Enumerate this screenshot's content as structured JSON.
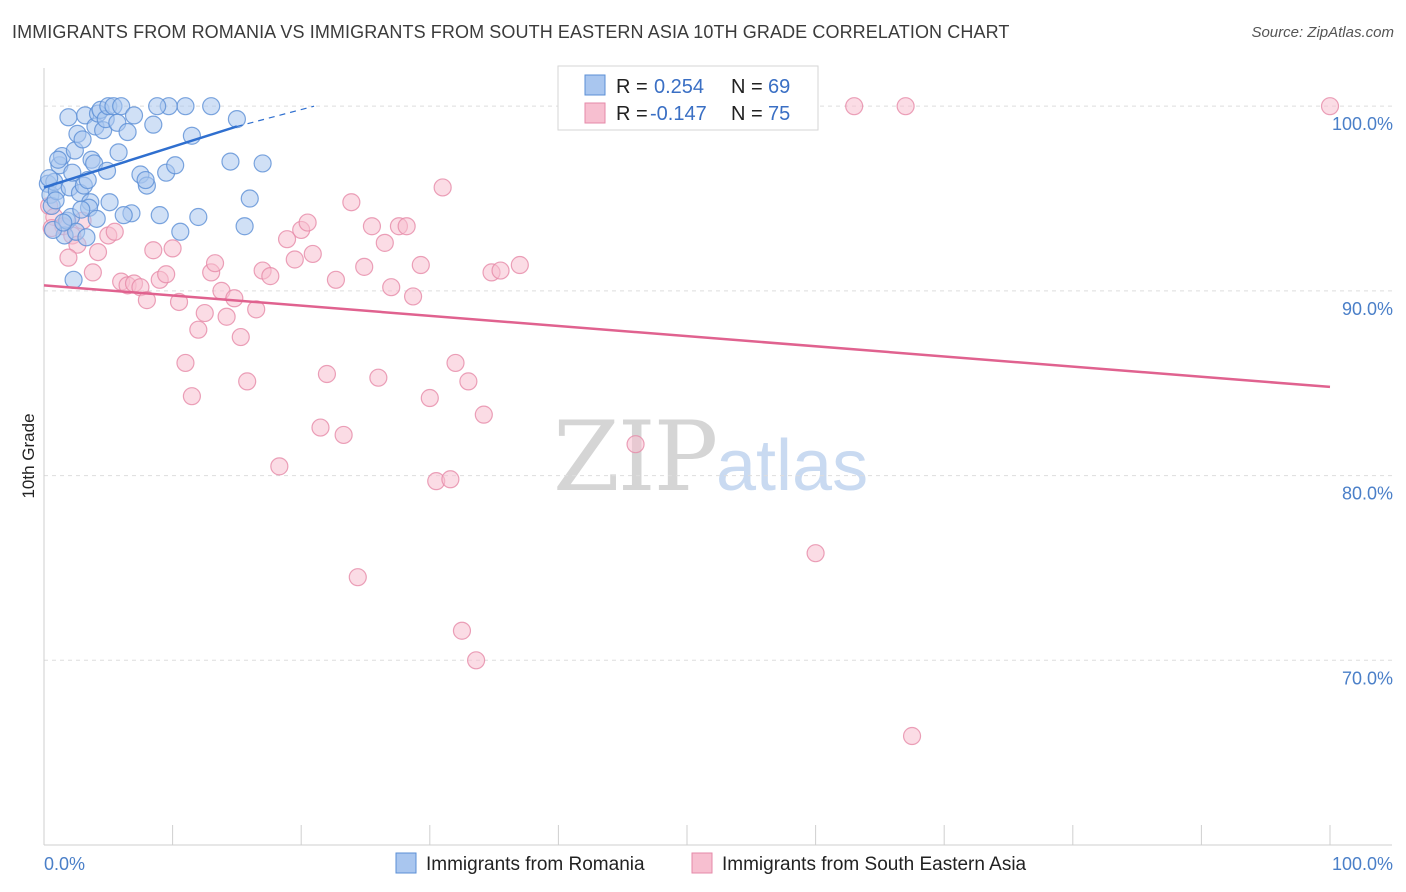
{
  "title": "IMMIGRANTS FROM ROMANIA VS IMMIGRANTS FROM SOUTH EASTERN ASIA 10TH GRADE CORRELATION CHART",
  "source": "Source: ZipAtlas.com",
  "watermark": {
    "zip": "ZIP",
    "atlas": "atlas"
  },
  "colors": {
    "romania_fill": "#a9c6ef",
    "romania_stroke": "#5b8fd6",
    "romania_line": "#2f6fcf",
    "sea_fill": "#f7bfd0",
    "sea_stroke": "#e68aa8",
    "sea_line": "#e0628f",
    "tick_text": "#4a7fc8",
    "grid": "#dddddd"
  },
  "legend": {
    "rows": [
      {
        "r_label": "R =",
        "r_value": "0.254",
        "n_label": "N =",
        "n_value": "69"
      },
      {
        "r_label": "R =",
        "r_value": "-0.147",
        "n_label": "N =",
        "n_value": "75"
      }
    ]
  },
  "chart_data": {
    "type": "scatter",
    "title": "IMMIGRANTS FROM ROMANIA VS IMMIGRANTS FROM SOUTH EASTERN ASIA 10TH GRADE CORRELATION CHART",
    "xlabel": "",
    "ylabel": "10th Grade",
    "xlim": [
      0,
      100
    ],
    "ylim": [
      60,
      102.5
    ],
    "x_tick_labels": [
      "0.0%",
      "100.0%"
    ],
    "y_ticks": [
      70,
      80,
      90,
      100
    ],
    "y_tick_labels": [
      "70.0%",
      "80.0%",
      "90.0%",
      "100.0%"
    ],
    "grid": true,
    "series": [
      {
        "name": "Immigrants from Romania",
        "R": 0.254,
        "N": 69,
        "trend": {
          "x0": 0,
          "y0": 95.6,
          "x1": 15,
          "y1": 98.9,
          "dash_to_x": 21,
          "dash_to_y": 100.0
        },
        "points": [
          [
            0.3,
            95.8
          ],
          [
            0.5,
            95.2
          ],
          [
            0.6,
            94.6
          ],
          [
            0.8,
            95.9
          ],
          [
            1.0,
            95.4
          ],
          [
            1.2,
            96.8
          ],
          [
            1.4,
            97.3
          ],
          [
            1.6,
            93.0
          ],
          [
            1.8,
            93.8
          ],
          [
            2.0,
            95.6
          ],
          [
            2.1,
            94.0
          ],
          [
            2.2,
            96.4
          ],
          [
            2.4,
            97.6
          ],
          [
            2.5,
            93.2
          ],
          [
            2.6,
            98.5
          ],
          [
            2.8,
            95.3
          ],
          [
            3.0,
            98.2
          ],
          [
            3.1,
            95.7
          ],
          [
            3.2,
            99.5
          ],
          [
            3.4,
            96.0
          ],
          [
            3.6,
            94.8
          ],
          [
            3.7,
            97.1
          ],
          [
            3.9,
            96.9
          ],
          [
            4.0,
            98.9
          ],
          [
            4.2,
            99.6
          ],
          [
            4.4,
            99.8
          ],
          [
            4.6,
            98.7
          ],
          [
            4.8,
            99.3
          ],
          [
            5.0,
            100.0
          ],
          [
            5.1,
            94.8
          ],
          [
            5.4,
            100.0
          ],
          [
            5.7,
            99.1
          ],
          [
            6.0,
            100.0
          ],
          [
            6.5,
            98.6
          ],
          [
            7.0,
            99.5
          ],
          [
            7.5,
            96.3
          ],
          [
            8.0,
            95.7
          ],
          [
            8.5,
            99.0
          ],
          [
            9.0,
            94.1
          ],
          [
            9.5,
            96.4
          ],
          [
            10.2,
            96.8
          ],
          [
            11.0,
            100.0
          ],
          [
            11.5,
            98.4
          ],
          [
            13.0,
            100.0
          ],
          [
            15.0,
            99.3
          ],
          [
            14.5,
            97.0
          ],
          [
            16.0,
            95.0
          ],
          [
            17.0,
            96.9
          ],
          [
            0.7,
            93.3
          ],
          [
            1.1,
            97.1
          ],
          [
            2.3,
            90.6
          ],
          [
            3.5,
            94.5
          ],
          [
            6.8,
            94.2
          ],
          [
            7.9,
            96.0
          ],
          [
            9.7,
            100.0
          ],
          [
            8.8,
            100.0
          ],
          [
            0.4,
            96.1
          ],
          [
            1.5,
            93.7
          ],
          [
            2.9,
            94.4
          ],
          [
            4.1,
            93.9
          ],
          [
            5.8,
            97.5
          ],
          [
            12.0,
            94.0
          ],
          [
            10.6,
            93.2
          ],
          [
            0.9,
            94.9
          ],
          [
            1.9,
            99.4
          ],
          [
            3.3,
            92.9
          ],
          [
            4.9,
            96.5
          ],
          [
            6.2,
            94.1
          ],
          [
            15.6,
            93.5
          ]
        ]
      },
      {
        "name": "Immigrants from South Eastern Asia",
        "R": -0.147,
        "N": 75,
        "trend": {
          "x0": 0,
          "y0": 90.3,
          "x1": 100,
          "y1": 84.8
        },
        "points": [
          [
            0.4,
            94.6
          ],
          [
            0.8,
            94.0
          ],
          [
            1.5,
            93.5
          ],
          [
            2.2,
            93.0
          ],
          [
            2.6,
            92.5
          ],
          [
            3.0,
            93.8
          ],
          [
            3.8,
            91.0
          ],
          [
            4.2,
            92.1
          ],
          [
            5.0,
            93.0
          ],
          [
            5.5,
            93.2
          ],
          [
            6.0,
            90.5
          ],
          [
            6.5,
            90.3
          ],
          [
            7.0,
            90.4
          ],
          [
            7.5,
            90.2
          ],
          [
            8.0,
            89.5
          ],
          [
            8.5,
            92.2
          ],
          [
            9.0,
            90.6
          ],
          [
            9.5,
            90.9
          ],
          [
            10.0,
            92.3
          ],
          [
            10.5,
            89.4
          ],
          [
            11.0,
            86.1
          ],
          [
            11.5,
            84.3
          ],
          [
            12.0,
            87.9
          ],
          [
            12.5,
            88.8
          ],
          [
            13.0,
            91.0
          ],
          [
            13.3,
            91.5
          ],
          [
            13.8,
            90.0
          ],
          [
            14.2,
            88.6
          ],
          [
            14.8,
            89.6
          ],
          [
            15.3,
            87.5
          ],
          [
            15.8,
            85.1
          ],
          [
            16.5,
            89.0
          ],
          [
            17.0,
            91.1
          ],
          [
            17.6,
            90.8
          ],
          [
            18.3,
            80.5
          ],
          [
            18.9,
            92.8
          ],
          [
            19.5,
            91.7
          ],
          [
            20.0,
            93.3
          ],
          [
            20.5,
            93.7
          ],
          [
            20.9,
            92.0
          ],
          [
            21.5,
            82.6
          ],
          [
            22.0,
            85.5
          ],
          [
            22.7,
            90.6
          ],
          [
            23.3,
            82.2
          ],
          [
            23.9,
            94.8
          ],
          [
            24.4,
            74.5
          ],
          [
            24.9,
            91.3
          ],
          [
            25.5,
            93.5
          ],
          [
            26.0,
            85.3
          ],
          [
            26.5,
            92.6
          ],
          [
            27.0,
            90.2
          ],
          [
            27.6,
            93.5
          ],
          [
            28.2,
            93.5
          ],
          [
            28.7,
            89.7
          ],
          [
            29.3,
            91.4
          ],
          [
            30.0,
            84.2
          ],
          [
            30.5,
            79.7
          ],
          [
            31.0,
            95.6
          ],
          [
            31.6,
            79.8
          ],
          [
            32.0,
            86.1
          ],
          [
            32.5,
            71.6
          ],
          [
            33.0,
            85.1
          ],
          [
            33.6,
            70.0
          ],
          [
            34.2,
            83.3
          ],
          [
            34.8,
            91.0
          ],
          [
            35.5,
            91.1
          ],
          [
            37.0,
            91.4
          ],
          [
            46.0,
            81.7
          ],
          [
            60.0,
            75.8
          ],
          [
            63.0,
            100.0
          ],
          [
            67.0,
            100.0
          ],
          [
            67.5,
            65.9
          ],
          [
            100.0,
            100.0
          ],
          [
            0.6,
            93.4
          ],
          [
            1.9,
            91.8
          ]
        ]
      }
    ]
  },
  "bottom_legend": [
    {
      "label": "Immigrants from Romania"
    },
    {
      "label": "Immigrants from South Eastern Asia"
    }
  ]
}
